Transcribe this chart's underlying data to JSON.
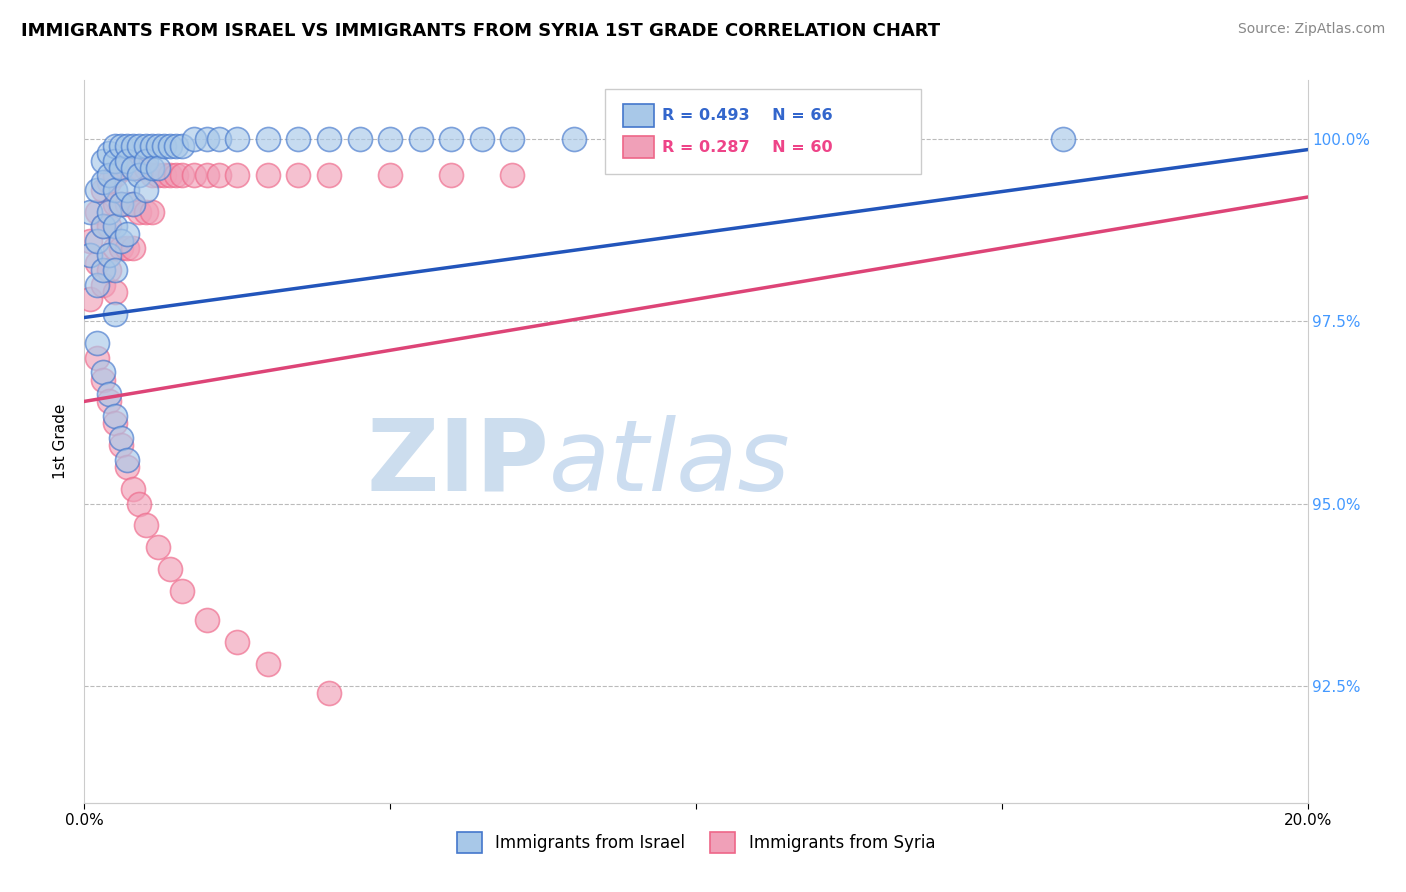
{
  "title": "IMMIGRANTS FROM ISRAEL VS IMMIGRANTS FROM SYRIA 1ST GRADE CORRELATION CHART",
  "source": "Source: ZipAtlas.com",
  "ylabel": "1st Grade",
  "r_israel": 0.493,
  "n_israel": 66,
  "r_syria": 0.287,
  "n_syria": 60,
  "ytick_labels": [
    "100.0%",
    "97.5%",
    "95.0%",
    "92.5%"
  ],
  "ytick_values": [
    1.0,
    0.975,
    0.95,
    0.925
  ],
  "xlim": [
    0.0,
    0.2
  ],
  "ylim": [
    0.909,
    1.008
  ],
  "israel_color": "#A8C8E8",
  "syria_color": "#F0A0B8",
  "israel_edge_color": "#4477CC",
  "syria_edge_color": "#EE6688",
  "israel_line_color": "#2255BB",
  "syria_line_color": "#DD4477",
  "background_color": "#FFFFFF",
  "israel_scatter_x": [
    0.001,
    0.001,
    0.002,
    0.002,
    0.002,
    0.003,
    0.003,
    0.003,
    0.003,
    0.004,
    0.004,
    0.004,
    0.004,
    0.005,
    0.005,
    0.005,
    0.005,
    0.005,
    0.005,
    0.006,
    0.006,
    0.006,
    0.006,
    0.007,
    0.007,
    0.007,
    0.007,
    0.008,
    0.008,
    0.008,
    0.009,
    0.009,
    0.01,
    0.01,
    0.01,
    0.011,
    0.011,
    0.012,
    0.012,
    0.013,
    0.014,
    0.015,
    0.016,
    0.018,
    0.02,
    0.022,
    0.025,
    0.03,
    0.035,
    0.04,
    0.045,
    0.05,
    0.055,
    0.06,
    0.065,
    0.07,
    0.08,
    0.09,
    0.1,
    0.16,
    0.002,
    0.003,
    0.004,
    0.005,
    0.006,
    0.007
  ],
  "israel_scatter_y": [
    0.99,
    0.984,
    0.993,
    0.986,
    0.98,
    0.997,
    0.994,
    0.988,
    0.982,
    0.998,
    0.995,
    0.99,
    0.984,
    0.999,
    0.997,
    0.993,
    0.988,
    0.982,
    0.976,
    0.999,
    0.996,
    0.991,
    0.986,
    0.999,
    0.997,
    0.993,
    0.987,
    0.999,
    0.996,
    0.991,
    0.999,
    0.995,
    0.999,
    0.997,
    0.993,
    0.999,
    0.996,
    0.999,
    0.996,
    0.999,
    0.999,
    0.999,
    0.999,
    1.0,
    1.0,
    1.0,
    1.0,
    1.0,
    1.0,
    1.0,
    1.0,
    1.0,
    1.0,
    1.0,
    1.0,
    1.0,
    1.0,
    1.0,
    1.0,
    1.0,
    0.972,
    0.968,
    0.965,
    0.962,
    0.959,
    0.956
  ],
  "syria_scatter_x": [
    0.001,
    0.001,
    0.002,
    0.002,
    0.003,
    0.003,
    0.003,
    0.004,
    0.004,
    0.004,
    0.005,
    0.005,
    0.005,
    0.005,
    0.006,
    0.006,
    0.006,
    0.007,
    0.007,
    0.007,
    0.008,
    0.008,
    0.008,
    0.009,
    0.009,
    0.01,
    0.01,
    0.011,
    0.011,
    0.012,
    0.013,
    0.014,
    0.015,
    0.016,
    0.018,
    0.02,
    0.022,
    0.025,
    0.03,
    0.035,
    0.04,
    0.05,
    0.06,
    0.07,
    0.002,
    0.003,
    0.004,
    0.005,
    0.006,
    0.007,
    0.008,
    0.009,
    0.01,
    0.012,
    0.014,
    0.016,
    0.02,
    0.025,
    0.03,
    0.04
  ],
  "syria_scatter_y": [
    0.986,
    0.978,
    0.99,
    0.983,
    0.993,
    0.988,
    0.98,
    0.994,
    0.988,
    0.982,
    0.995,
    0.991,
    0.985,
    0.979,
    0.996,
    0.991,
    0.985,
    0.996,
    0.991,
    0.985,
    0.996,
    0.991,
    0.985,
    0.996,
    0.99,
    0.996,
    0.99,
    0.995,
    0.99,
    0.995,
    0.995,
    0.995,
    0.995,
    0.995,
    0.995,
    0.995,
    0.995,
    0.995,
    0.995,
    0.995,
    0.995,
    0.995,
    0.995,
    0.995,
    0.97,
    0.967,
    0.964,
    0.961,
    0.958,
    0.955,
    0.952,
    0.95,
    0.947,
    0.944,
    0.941,
    0.938,
    0.934,
    0.931,
    0.928,
    0.924
  ],
  "israel_trend_x": [
    0.0,
    0.2
  ],
  "israel_trend_y": [
    0.9755,
    0.9985
  ],
  "syria_trend_x": [
    0.0,
    0.2
  ],
  "syria_trend_y": [
    0.964,
    0.992
  ]
}
